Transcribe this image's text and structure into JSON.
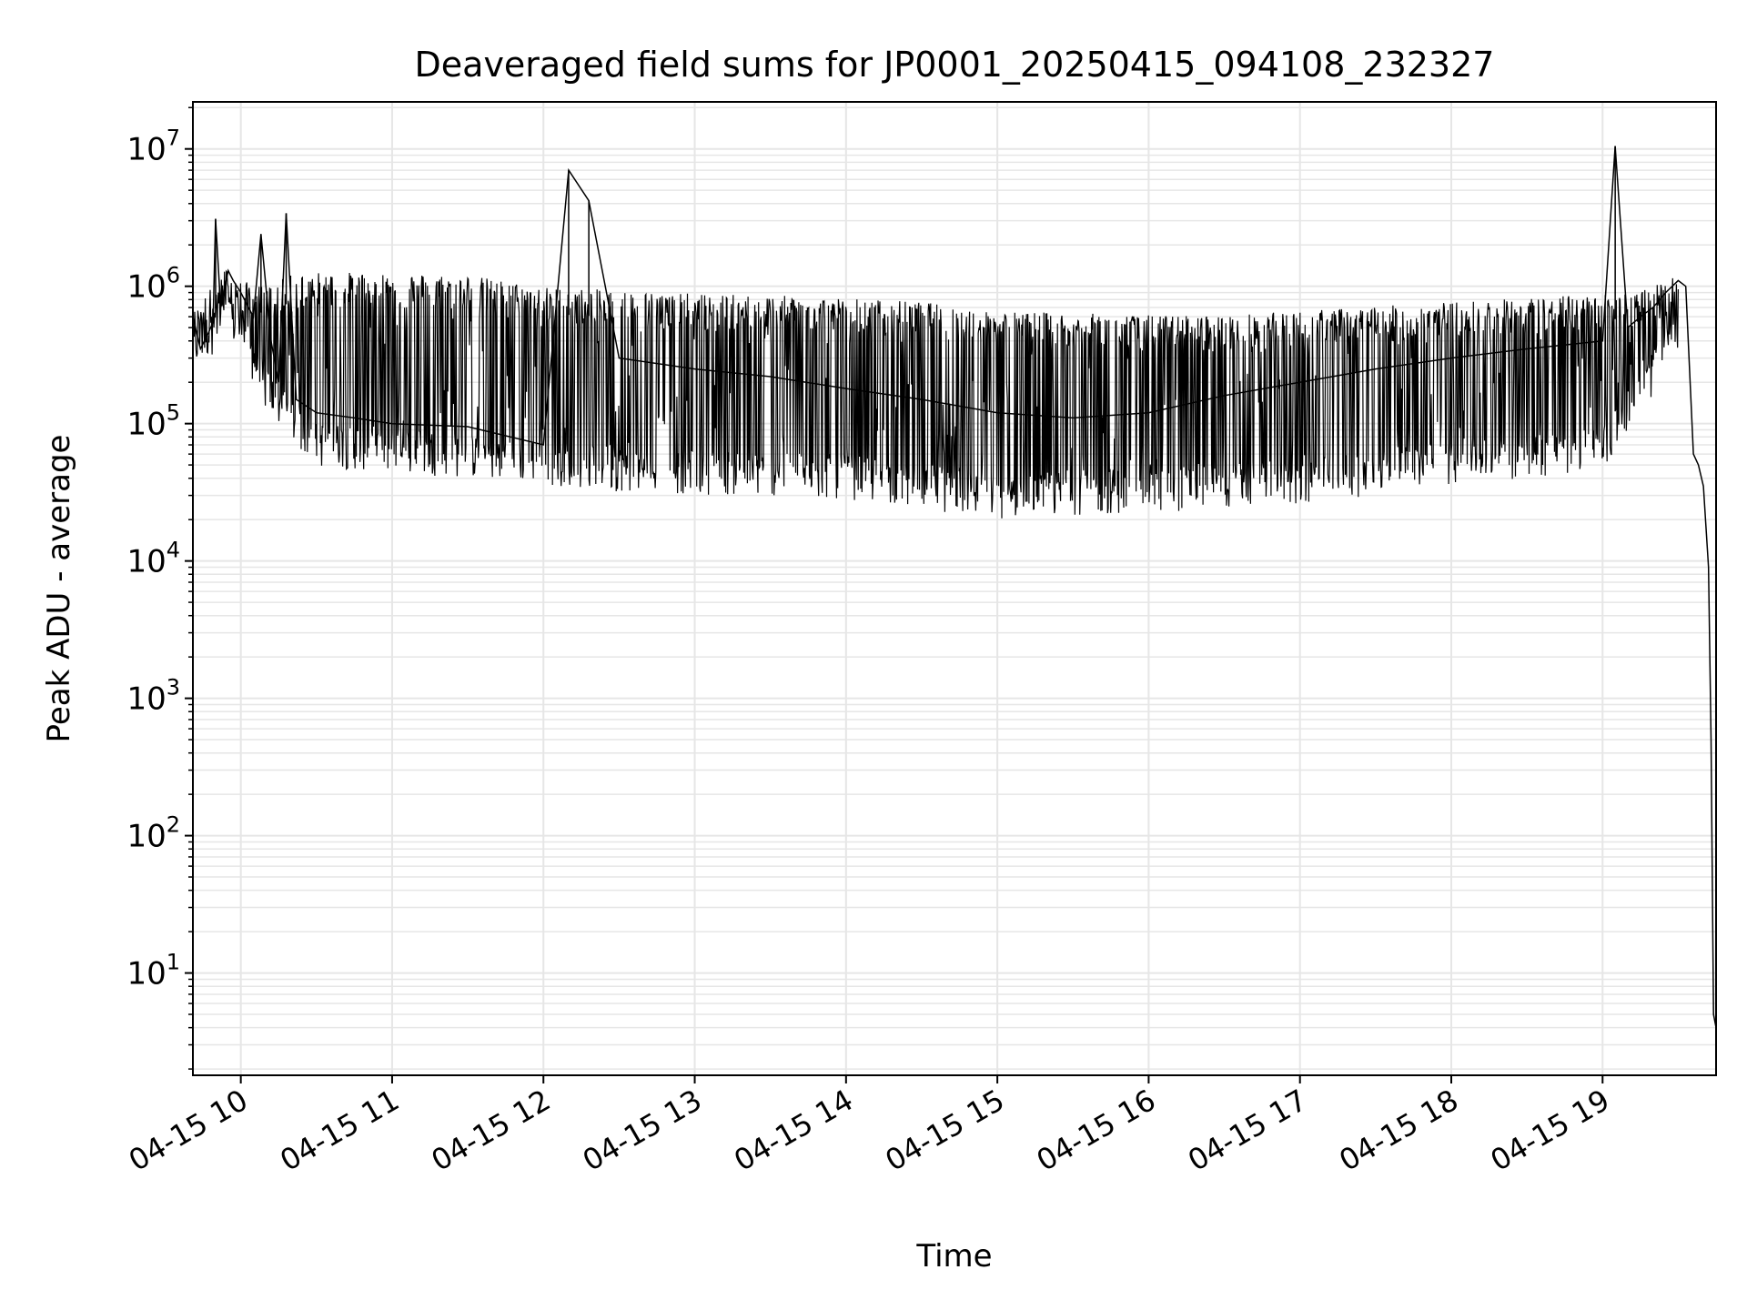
{
  "chart_data": {
    "type": "line",
    "title": "Deaveraged field sums for JP0001_20250415_094108_232327",
    "xlabel": "Time",
    "ylabel": "Peak ADU - average",
    "x_tick_labels": [
      "04-15 10",
      "04-15 11",
      "04-15 12",
      "04-15 13",
      "04-15 14",
      "04-15 15",
      "04-15 16",
      "04-15 17",
      "04-15 18",
      "04-15 19"
    ],
    "x_ticks": [
      "2025-04-15T10:00",
      "2025-04-15T11:00",
      "2025-04-15T12:00",
      "2025-04-15T13:00",
      "2025-04-15T14:00",
      "2025-04-15T15:00",
      "2025-04-15T16:00",
      "2025-04-15T17:00",
      "2025-04-15T18:00",
      "2025-04-15T19:00"
    ],
    "y_ticks": [
      {
        "base": "10",
        "exp": "1",
        "value": 10
      },
      {
        "base": "10",
        "exp": "2",
        "value": 100
      },
      {
        "base": "10",
        "exp": "3",
        "value": 1000
      },
      {
        "base": "10",
        "exp": "4",
        "value": 10000
      },
      {
        "base": "10",
        "exp": "5",
        "value": 100000
      },
      {
        "base": "10",
        "exp": "6",
        "value": 1000000
      },
      {
        "base": "10",
        "exp": "7",
        "value": 10000000
      }
    ],
    "x_range": [
      "2025-04-15T09:41",
      "2025-04-15T19:45"
    ],
    "ylim": [
      1.8,
      22000000
    ],
    "y_scale": "log",
    "grid": true,
    "line_color": "#000000",
    "grid_color": "#e6e6e6",
    "series": [
      {
        "x": [
          "2025-04-15T09:41",
          "2025-04-15T09:44",
          "2025-04-15T09:47",
          "2025-04-15T09:49",
          "2025-04-15T09:50",
          "2025-04-15T09:52",
          "2025-04-15T09:55",
          "2025-04-15T09:57",
          "2025-04-15T10:00",
          "2025-04-15T10:05",
          "2025-04-15T10:08",
          "2025-04-15T10:12",
          "2025-04-15T10:15",
          "2025-04-15T10:18",
          "2025-04-15T10:22",
          "2025-04-15T10:30",
          "2025-04-15T10:45",
          "2025-04-15T11:00",
          "2025-04-15T11:30",
          "2025-04-15T12:00",
          "2025-04-15T12:10",
          "2025-04-15T12:18",
          "2025-04-15T12:30",
          "2025-04-15T13:00",
          "2025-04-15T13:30",
          "2025-04-15T14:00",
          "2025-04-15T14:30",
          "2025-04-15T15:00",
          "2025-04-15T15:30",
          "2025-04-15T16:00",
          "2025-04-15T16:30",
          "2025-04-15T17:00",
          "2025-04-15T17:30",
          "2025-04-15T18:00",
          "2025-04-15T18:30",
          "2025-04-15T19:00",
          "2025-04-15T19:05",
          "2025-04-15T19:10",
          "2025-04-15T19:15",
          "2025-04-15T19:20",
          "2025-04-15T19:25",
          "2025-04-15T19:30",
          "2025-04-15T19:33",
          "2025-04-15T19:36",
          "2025-04-15T19:38",
          "2025-04-15T19:40",
          "2025-04-15T19:42",
          "2025-04-15T19:43",
          "2025-04-15T19:44",
          "2025-04-15T19:45"
        ],
        "y": [
          600000,
          350000,
          450000,
          550000,
          3100000,
          700000,
          1300000,
          1100000,
          900000,
          600000,
          2400000,
          400000,
          200000,
          3400000,
          150000,
          120000,
          110000,
          100000,
          95000,
          70000,
          7000000,
          4200000,
          300000,
          250000,
          220000,
          180000,
          150000,
          120000,
          110000,
          120000,
          160000,
          200000,
          250000,
          300000,
          350000,
          400000,
          10500000,
          500000,
          600000,
          700000,
          900000,
          1100000,
          1000000,
          60000,
          50000,
          35000,
          9000,
          500,
          5,
          4
        ]
      }
    ],
    "envelope": {
      "x": [
        "2025-04-15T09:41",
        "2025-04-15T09:55",
        "2025-04-15T10:00",
        "2025-04-15T10:10",
        "2025-04-15T10:20",
        "2025-04-15T10:30",
        "2025-04-15T11:00",
        "2025-04-15T11:30",
        "2025-04-15T12:00",
        "2025-04-15T12:30",
        "2025-04-15T13:00",
        "2025-04-15T13:30",
        "2025-04-15T14:00",
        "2025-04-15T14:30",
        "2025-04-15T15:00",
        "2025-04-15T15:30",
        "2025-04-15T16:00",
        "2025-04-15T16:30",
        "2025-04-15T17:00",
        "2025-04-15T17:30",
        "2025-04-15T18:00",
        "2025-04-15T18:30",
        "2025-04-15T19:00",
        "2025-04-15T19:20",
        "2025-04-15T19:30"
      ],
      "top": [
        600000,
        1300000,
        1000000,
        900000,
        1100000,
        1150000,
        1150000,
        1100000,
        900000,
        850000,
        800000,
        780000,
        750000,
        700000,
        600000,
        580000,
        560000,
        560000,
        600000,
        650000,
        700000,
        750000,
        800000,
        900000,
        1100000
      ],
      "bottom": [
        300000,
        500000,
        400000,
        150000,
        90000,
        60000,
        55000,
        50000,
        45000,
        40000,
        38000,
        37000,
        35000,
        30000,
        25000,
        27000,
        28000,
        30000,
        32000,
        38000,
        45000,
        50000,
        55000,
        200000,
        400000
      ]
    }
  }
}
